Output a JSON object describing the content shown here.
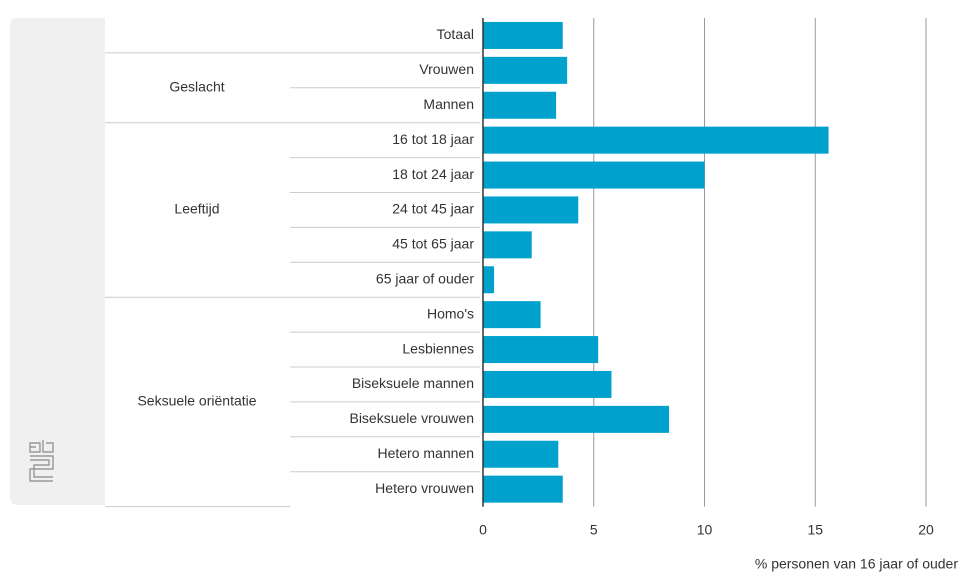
{
  "chart_data": {
    "type": "bar",
    "orientation": "horizontal",
    "color": "#00a1cd",
    "grid": true,
    "xlabel": "% personen van 16 jaar of ouder",
    "xlim": [
      0,
      20
    ],
    "xticks": [
      0,
      5,
      10,
      15,
      20
    ],
    "groups": [
      {
        "name": null,
        "categories": [
          "Totaal"
        ],
        "values": [
          3.6
        ]
      },
      {
        "name": "Geslacht",
        "categories": [
          "Vrouwen",
          "Mannen"
        ],
        "values": [
          3.8,
          3.3
        ]
      },
      {
        "name": "Leeftijd",
        "categories": [
          "16 tot 18 jaar",
          "18 tot 24 jaar",
          "24 tot 45 jaar",
          "45 tot 65 jaar",
          "65 jaar of ouder"
        ],
        "values": [
          15.6,
          10.0,
          4.3,
          2.2,
          0.5
        ]
      },
      {
        "name": "Seksuele oriëntatie",
        "categories": [
          "Homo's",
          "Lesbiennes",
          "Biseksuele mannen",
          "Biseksuele vrouwen",
          "Hetero mannen",
          "Hetero vrouwen"
        ],
        "values": [
          2.6,
          5.2,
          5.8,
          8.4,
          3.4,
          3.6
        ]
      }
    ]
  }
}
